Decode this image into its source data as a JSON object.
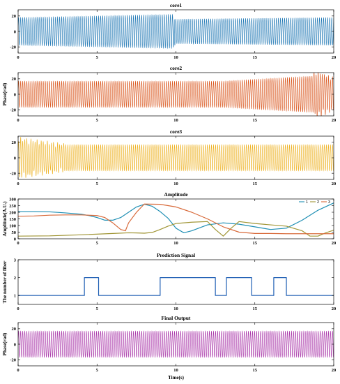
{
  "chart_data": [
    {
      "type": "line",
      "title": "core1",
      "ylabel": "",
      "xlabel": "",
      "xlim": [
        0,
        20
      ],
      "ylim": [
        -28,
        28
      ],
      "xticks": [
        "0",
        "5",
        "10",
        "15",
        "20"
      ],
      "yticks": [
        "20",
        "0",
        "-20"
      ],
      "color": "#1f77b4",
      "signal": {
        "kind": "oscillation",
        "amplitude": 18,
        "period": 0.13,
        "note": "phase jump near t=10"
      },
      "series": [
        {
          "x": [
            0,
            9.8,
            10.0,
            20
          ],
          "amplitude": [
            18,
            22,
            16,
            18
          ]
        }
      ]
    },
    {
      "type": "line",
      "title": "core2",
      "ylabel": "Phase(rad)",
      "xlabel": "",
      "xlim": [
        0,
        20
      ],
      "ylim": [
        -28,
        28
      ],
      "xticks": [
        "0",
        "5",
        "10",
        "15",
        "20"
      ],
      "yticks": [
        "20",
        "0",
        "-20"
      ],
      "color": "#d95319",
      "signal": {
        "kind": "oscillation",
        "amplitude": 17,
        "period": 0.13,
        "note": "disturbances near t=13 and t=19"
      },
      "series": [
        {
          "x": [
            0,
            13,
            19,
            20
          ],
          "amplitude": [
            17,
            17,
            24,
            17
          ]
        }
      ]
    },
    {
      "type": "line",
      "title": "core3",
      "ylabel": "",
      "xlabel": "",
      "xlim": [
        0,
        20
      ],
      "ylim": [
        -28,
        28
      ],
      "xticks": [
        "0",
        "5",
        "10",
        "15",
        "20"
      ],
      "yticks": [
        "20",
        "0",
        "-20"
      ],
      "color": "#edb120",
      "signal": {
        "kind": "oscillation",
        "amplitude": 17,
        "period": 0.13,
        "note": "irregular start before t=3"
      },
      "series": [
        {
          "x": [
            0,
            3,
            20
          ],
          "amplitude": [
            25,
            17,
            17
          ]
        }
      ]
    },
    {
      "type": "line",
      "title": "Amplitude",
      "ylabel": "Amplitude(A.U.)",
      "xlabel": "",
      "xlim": [
        0,
        20
      ],
      "ylim": [
        0,
        300
      ],
      "xticks": [
        "0",
        "5",
        "10",
        "15",
        "20"
      ],
      "yticks": [
        "300",
        "250",
        "200",
        "150",
        "100",
        "50",
        "0"
      ],
      "legend": {
        "position": "top-right",
        "entries": [
          "1",
          "2",
          "3"
        ]
      },
      "series": [
        {
          "name": "1",
          "color": "#1f8fb4",
          "x": [
            0,
            1,
            2,
            3,
            4,
            4.5,
            5,
            5.5,
            6,
            6.5,
            7,
            7.5,
            8,
            8.5,
            9,
            9.5,
            10,
            10.5,
            11,
            12,
            13,
            14,
            15,
            16,
            17,
            18,
            19,
            20
          ],
          "y": [
            205,
            205,
            203,
            195,
            185,
            175,
            160,
            140,
            140,
            160,
            200,
            240,
            260,
            245,
            205,
            155,
            80,
            45,
            60,
            105,
            120,
            110,
            90,
            70,
            80,
            140,
            215,
            270
          ]
        },
        {
          "name": "2",
          "color": "#a09535",
          "x": [
            0,
            2,
            4,
            6,
            7,
            7.5,
            8,
            8.5,
            9,
            9.5,
            10,
            11,
            12,
            12.5,
            13,
            13.5,
            14,
            15,
            16,
            17,
            18,
            18.5,
            19,
            19.5,
            20
          ],
          "y": [
            20,
            22,
            30,
            40,
            45,
            44,
            42,
            48,
            70,
            95,
            115,
            125,
            130,
            70,
            20,
            80,
            130,
            115,
            105,
            95,
            60,
            20,
            20,
            45,
            65
          ]
        },
        {
          "name": "3",
          "color": "#d86a3a",
          "x": [
            0,
            1,
            2,
            3,
            4,
            5,
            5.5,
            6,
            6.5,
            6.8,
            7,
            7.5,
            8,
            9,
            10,
            11,
            12,
            13,
            14,
            15,
            16,
            17,
            18,
            19,
            20
          ],
          "y": [
            170,
            172,
            178,
            180,
            180,
            175,
            160,
            120,
            70,
            60,
            120,
            200,
            262,
            260,
            240,
            200,
            150,
            90,
            50,
            40,
            40,
            38,
            38,
            38,
            38
          ]
        }
      ]
    },
    {
      "type": "line",
      "title": "Prediction Signal",
      "ylabel": "The number of fiber",
      "xlabel": "",
      "xlim": [
        0,
        20
      ],
      "ylim": [
        0.5,
        3
      ],
      "xticks": [
        "0",
        "5",
        "10",
        "15",
        "20"
      ],
      "yticks": [
        "3",
        "2",
        "1"
      ],
      "color": "#1f5fb4",
      "series": [
        {
          "x": [
            0,
            4.2,
            4.2,
            5.1,
            5.1,
            9.0,
            9.0,
            12.5,
            12.5,
            13.2,
            13.2,
            14.8,
            14.8,
            16.2,
            16.2,
            17.0,
            17.0,
            20
          ],
          "y": [
            1,
            1,
            2,
            2,
            1,
            1,
            2,
            2,
            1,
            1,
            2,
            2,
            1,
            1,
            2,
            2,
            1,
            1
          ]
        }
      ]
    },
    {
      "type": "line",
      "title": "Final Output",
      "ylabel": "Phase(rad)",
      "xlabel": "Time(s)",
      "xlim": [
        0,
        20
      ],
      "ylim": [
        -28,
        28
      ],
      "xticks": [
        "0",
        "5",
        "10",
        "15",
        "20"
      ],
      "yticks": [
        "20",
        "0",
        "-20"
      ],
      "color": "#a833a8",
      "signal": {
        "kind": "oscillation",
        "amplitude": 17,
        "period": 0.13
      },
      "series": [
        {
          "x": [
            0,
            20
          ],
          "amplitude": [
            17,
            17
          ]
        }
      ]
    }
  ]
}
